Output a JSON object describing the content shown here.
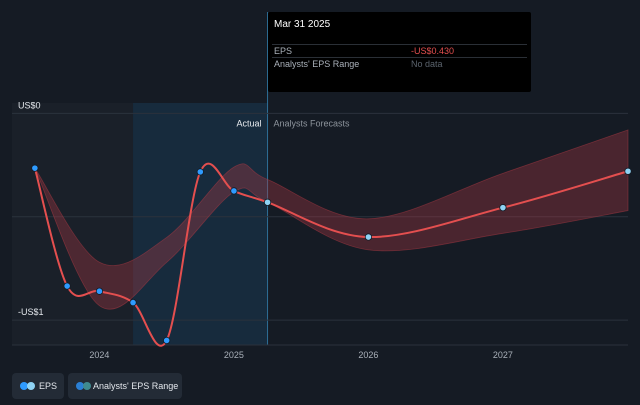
{
  "chart_data": {
    "type": "line",
    "y_axis": {
      "ticks": [
        {
          "label": "US$0",
          "value": 0
        },
        {
          "label": "-US$1",
          "value": -1
        }
      ],
      "ylim": [
        -1.12,
        0.05
      ]
    },
    "x_axis": {
      "ticks": [
        "2024",
        "2025",
        "2026",
        "2027"
      ],
      "xlim": [
        2023.35,
        2027.93
      ]
    },
    "divider": {
      "x": 2025.25,
      "left_label": "Actual",
      "right_label": "Analysts Forecasts"
    },
    "highlight_from": 2024.25,
    "series": [
      {
        "name": "EPS",
        "color": "#e44f4f",
        "points": [
          {
            "x": 2023.52,
            "y": -0.265
          },
          {
            "x": 2023.76,
            "y": -0.835
          },
          {
            "x": 2024.0,
            "y": -0.86
          },
          {
            "x": 2024.25,
            "y": -0.915
          },
          {
            "x": 2024.5,
            "y": -1.098
          },
          {
            "x": 2024.75,
            "y": -0.283
          },
          {
            "x": 2025.0,
            "y": -0.375
          },
          {
            "x": 2025.25,
            "y": -0.43
          },
          {
            "x": 2026.0,
            "y": -0.598
          },
          {
            "x": 2027.0,
            "y": -0.456
          },
          {
            "x": 2027.93,
            "y": -0.28
          }
        ]
      }
    ],
    "range_band": {
      "name": "Analysts' EPS Range",
      "upper": [
        {
          "x": 2023.52,
          "y": -0.265
        },
        {
          "x": 2024.0,
          "y": -0.72
        },
        {
          "x": 2024.5,
          "y": -0.6
        },
        {
          "x": 2025.0,
          "y": -0.26
        },
        {
          "x": 2025.25,
          "y": -0.32
        },
        {
          "x": 2026.0,
          "y": -0.51
        },
        {
          "x": 2027.0,
          "y": -0.29
        },
        {
          "x": 2027.93,
          "y": -0.08
        }
      ],
      "lower": [
        {
          "x": 2023.52,
          "y": -0.265
        },
        {
          "x": 2024.0,
          "y": -0.93
        },
        {
          "x": 2024.5,
          "y": -0.72
        },
        {
          "x": 2025.0,
          "y": -0.38
        },
        {
          "x": 2025.25,
          "y": -0.43
        },
        {
          "x": 2026.0,
          "y": -0.66
        },
        {
          "x": 2027.0,
          "y": -0.58
        },
        {
          "x": 2027.93,
          "y": -0.47
        }
      ]
    }
  },
  "tooltip": {
    "date": "Mar 31 2025",
    "rows": [
      {
        "label": "EPS",
        "value": "-US$0.430",
        "value_color": "#e44f4f"
      },
      {
        "label": "Analysts' EPS Range",
        "value": "No data",
        "value_color": "#5b636d"
      }
    ]
  },
  "legend": {
    "items": [
      {
        "label": "EPS",
        "colors": [
          "#2e9bff",
          "#8fd3f4"
        ]
      },
      {
        "label": "Analysts' EPS Range",
        "colors": [
          "#2a7fd4",
          "#3f8a8f"
        ]
      }
    ]
  }
}
